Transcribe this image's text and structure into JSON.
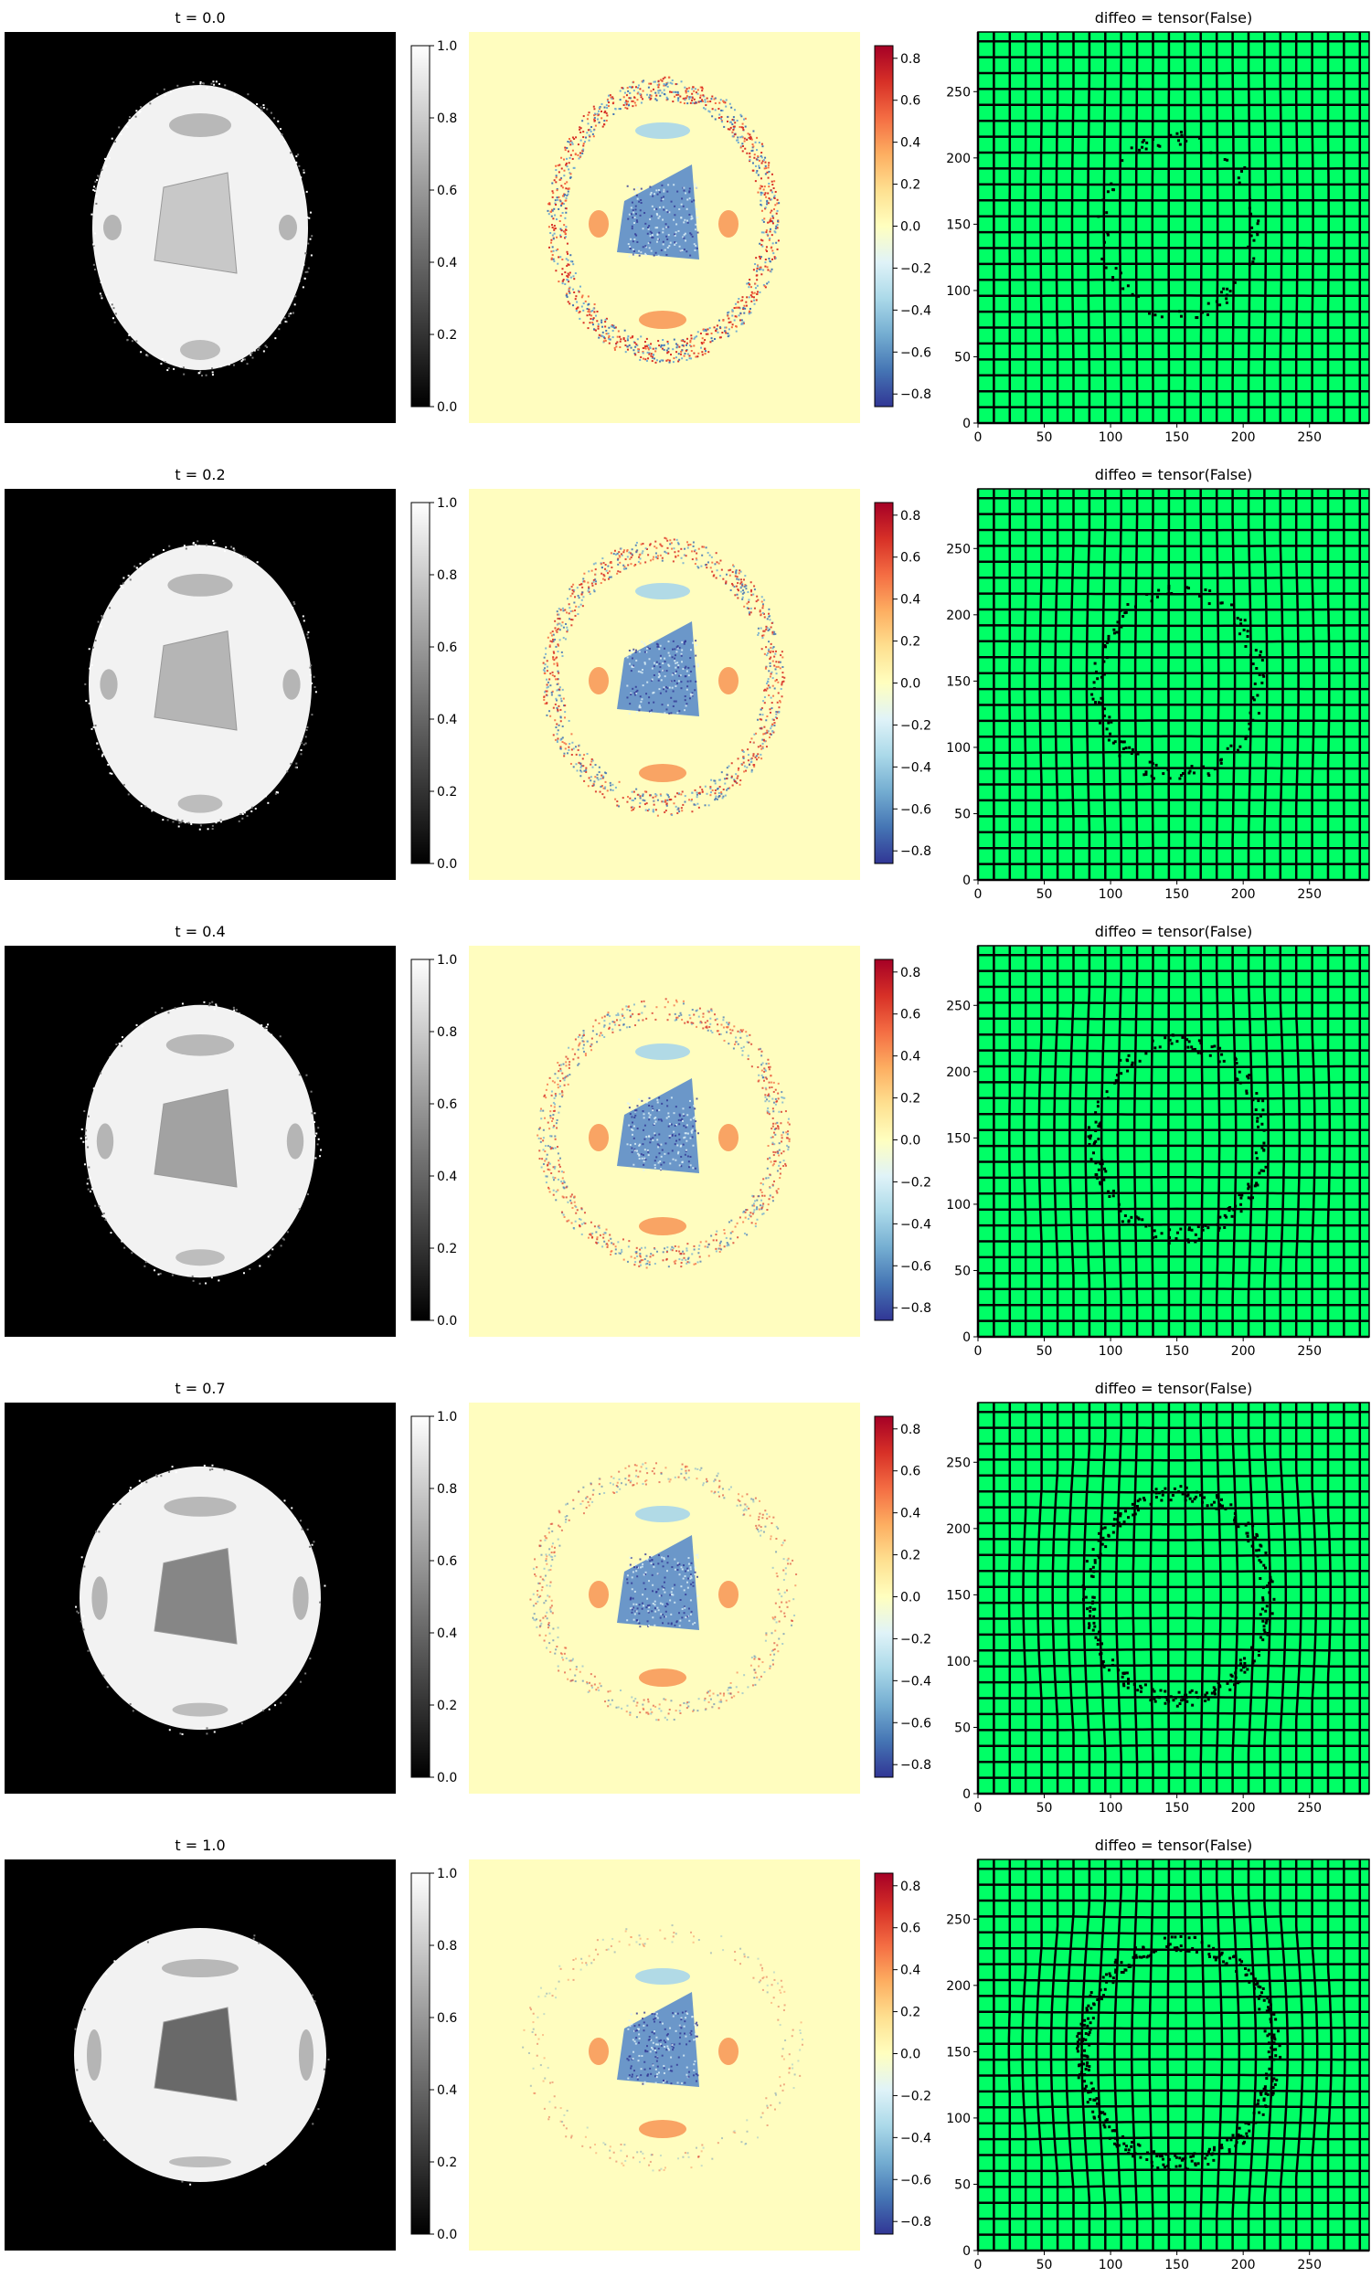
{
  "chart_data": [
    {
      "row": 0,
      "type": "heatmap",
      "image_kind": "grayscale_phantom",
      "title": "t = 0.0",
      "colormap": "gray",
      "colorbar_range": [
        0.0,
        1.0
      ],
      "colorbar_ticks": [
        "0.0",
        "0.2",
        "0.4",
        "0.6",
        "0.8",
        "1.0"
      ],
      "t": 0.0
    },
    {
      "row": 0,
      "type": "heatmap",
      "image_kind": "residual",
      "title": "",
      "colormap": "RdYlBu_r",
      "colorbar_range": [
        -0.86,
        0.86
      ],
      "colorbar_ticks": [
        "−0.8",
        "−0.6",
        "−0.4",
        "−0.2",
        "0.0",
        "0.2",
        "0.4",
        "0.6",
        "0.8"
      ],
      "t": 0.0
    },
    {
      "row": 0,
      "type": "grid",
      "image_kind": "deformation_grid",
      "title": "diffeo = tensor(False)",
      "xlim": [
        0,
        295
      ],
      "ylim": [
        0,
        295
      ],
      "xticks": [
        "0",
        "50",
        "100",
        "150",
        "200",
        "250"
      ],
      "yticks": [
        "0",
        "50",
        "100",
        "150",
        "200",
        "250"
      ],
      "t": 0.0
    },
    {
      "row": 1,
      "type": "heatmap",
      "image_kind": "grayscale_phantom",
      "title": "t = 0.2",
      "colormap": "gray",
      "colorbar_range": [
        0.0,
        1.0
      ],
      "colorbar_ticks": [
        "0.0",
        "0.2",
        "0.4",
        "0.6",
        "0.8",
        "1.0"
      ],
      "t": 0.2
    },
    {
      "row": 1,
      "type": "heatmap",
      "image_kind": "residual",
      "title": "",
      "colormap": "RdYlBu_r",
      "colorbar_range": [
        -0.86,
        0.86
      ],
      "colorbar_ticks": [
        "−0.8",
        "−0.6",
        "−0.4",
        "−0.2",
        "0.0",
        "0.2",
        "0.4",
        "0.6",
        "0.8"
      ],
      "t": 0.2
    },
    {
      "row": 1,
      "type": "grid",
      "image_kind": "deformation_grid",
      "title": "diffeo = tensor(False)",
      "xlim": [
        0,
        295
      ],
      "ylim": [
        0,
        295
      ],
      "xticks": [
        "0",
        "50",
        "100",
        "150",
        "200",
        "250"
      ],
      "yticks": [
        "0",
        "50",
        "100",
        "150",
        "200",
        "250"
      ],
      "t": 0.2
    },
    {
      "row": 2,
      "type": "heatmap",
      "image_kind": "grayscale_phantom",
      "title": "t = 0.4",
      "colormap": "gray",
      "colorbar_range": [
        0.0,
        1.0
      ],
      "colorbar_ticks": [
        "0.0",
        "0.2",
        "0.4",
        "0.6",
        "0.8",
        "1.0"
      ],
      "t": 0.4
    },
    {
      "row": 2,
      "type": "heatmap",
      "image_kind": "residual",
      "title": "",
      "colormap": "RdYlBu_r",
      "colorbar_range": [
        -0.86,
        0.86
      ],
      "colorbar_ticks": [
        "−0.8",
        "−0.6",
        "−0.4",
        "−0.2",
        "0.0",
        "0.2",
        "0.4",
        "0.6",
        "0.8"
      ],
      "t": 0.4
    },
    {
      "row": 2,
      "type": "grid",
      "image_kind": "deformation_grid",
      "title": "diffeo = tensor(False)",
      "xlim": [
        0,
        295
      ],
      "ylim": [
        0,
        295
      ],
      "xticks": [
        "0",
        "50",
        "100",
        "150",
        "200",
        "250"
      ],
      "yticks": [
        "0",
        "50",
        "100",
        "150",
        "200",
        "250"
      ],
      "t": 0.4
    },
    {
      "row": 3,
      "type": "heatmap",
      "image_kind": "grayscale_phantom",
      "title": "t = 0.7",
      "colormap": "gray",
      "colorbar_range": [
        0.0,
        1.0
      ],
      "colorbar_ticks": [
        "0.0",
        "0.2",
        "0.4",
        "0.6",
        "0.8",
        "1.0"
      ],
      "t": 0.7
    },
    {
      "row": 3,
      "type": "heatmap",
      "image_kind": "residual",
      "title": "",
      "colormap": "RdYlBu_r",
      "colorbar_range": [
        -0.86,
        0.86
      ],
      "colorbar_ticks": [
        "−0.8",
        "−0.6",
        "−0.4",
        "−0.2",
        "0.0",
        "0.2",
        "0.4",
        "0.6",
        "0.8"
      ],
      "t": 0.7
    },
    {
      "row": 3,
      "type": "grid",
      "image_kind": "deformation_grid",
      "title": "diffeo = tensor(False)",
      "xlim": [
        0,
        295
      ],
      "ylim": [
        0,
        295
      ],
      "xticks": [
        "0",
        "50",
        "100",
        "150",
        "200",
        "250"
      ],
      "yticks": [
        "0",
        "50",
        "100",
        "150",
        "200",
        "250"
      ],
      "t": 0.7
    },
    {
      "row": 4,
      "type": "heatmap",
      "image_kind": "grayscale_phantom",
      "title": "t = 1.0",
      "colormap": "gray",
      "colorbar_range": [
        0.0,
        1.0
      ],
      "colorbar_ticks": [
        "0.0",
        "0.2",
        "0.4",
        "0.6",
        "0.8",
        "1.0"
      ],
      "t": 1.0
    },
    {
      "row": 4,
      "type": "heatmap",
      "image_kind": "residual",
      "title": "",
      "colormap": "RdYlBu_r",
      "colorbar_range": [
        -0.86,
        0.86
      ],
      "colorbar_ticks": [
        "−0.8",
        "−0.6",
        "−0.4",
        "−0.2",
        "0.0",
        "0.2",
        "0.4",
        "0.6",
        "0.8"
      ],
      "t": 1.0
    },
    {
      "row": 4,
      "type": "grid",
      "image_kind": "deformation_grid",
      "title": "diffeo = tensor(False)",
      "xlim": [
        0,
        295
      ],
      "ylim": [
        0,
        295
      ],
      "xticks": [
        "0",
        "50",
        "100",
        "150",
        "200",
        "250"
      ],
      "yticks": [
        "0",
        "50",
        "100",
        "150",
        "200",
        "250"
      ],
      "t": 1.0
    }
  ],
  "colors": {
    "grid_background": "#00ff66",
    "grid_lines": "#000000",
    "residual_background": "#fffdbf",
    "phantom_background": "#000000"
  }
}
